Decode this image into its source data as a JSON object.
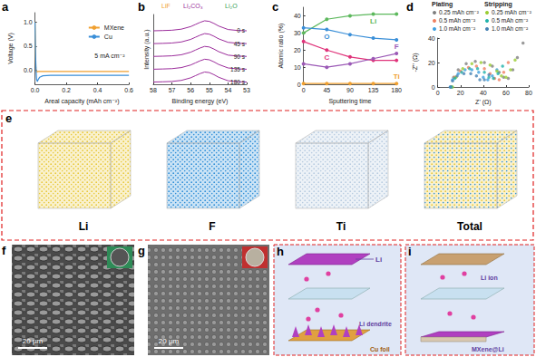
{
  "chart_data": [
    {
      "panel": "a",
      "type": "line",
      "xlabel": "Areal capacity (mAh cm⁻²)",
      "ylabel": "Voltage (V)",
      "xlim": [
        0,
        0.6
      ],
      "xticks": [
        {
          "value": 0,
          "label": "0.0"
        },
        0.2,
        0.4,
        0.6
      ],
      "ylim": [
        -0.3,
        1.2
      ],
      "yticks": [
        {
          "value": 0,
          "label": "0.0"
        },
        0.5,
        {
          "value": 1,
          "label": "1.0"
        }
      ],
      "grid": false,
      "legend": "upper right",
      "annotations": [
        "5 mA cm⁻²"
      ],
      "series": [
        {
          "name": "MXene",
          "color": "#f0a030",
          "x": [
            0,
            0.003,
            0.006,
            0.01,
            0.02,
            0.05,
            0.1,
            0.2,
            0.3,
            0.4,
            0.5,
            0.6
          ],
          "values": [
            1.0,
            0.3,
            0.0,
            -0.04,
            -0.03,
            -0.03,
            -0.03,
            -0.03,
            -0.03,
            -0.03,
            -0.03,
            -0.03
          ]
        },
        {
          "name": "Cu",
          "color": "#3a8fd8",
          "x": [
            0,
            0.003,
            0.006,
            0.01,
            0.015,
            0.02,
            0.03,
            0.05,
            0.1,
            0.2,
            0.3,
            0.4,
            0.5,
            0.6
          ],
          "values": [
            1.0,
            0.4,
            0.05,
            -0.2,
            -0.24,
            -0.2,
            -0.15,
            -0.12,
            -0.11,
            -0.11,
            -0.11,
            -0.11,
            -0.11,
            -0.11
          ]
        }
      ]
    },
    {
      "panel": "b",
      "type": "line",
      "xlabel": "Binding energy (eV)",
      "ylabel": "Intensity (a.u.)",
      "xlim": [
        58,
        53
      ],
      "xticks": [
        58,
        57,
        56,
        55,
        54,
        53
      ],
      "ylim": [
        0,
        6
      ],
      "tick_labels": "x",
      "grid": false,
      "annotations": [
        {
          "text": "LiF",
          "color": "#f0a030"
        },
        {
          "text": "Li₂CO₃",
          "color": "#9b2d9b"
        },
        {
          "text": "Li₂O",
          "color": "#3aa05a"
        }
      ],
      "series": [
        {
          "name": "0 s",
          "color": "#9b2d9b",
          "x": [
            58,
            57.5,
            57,
            56.5,
            56,
            55.75,
            55.5,
            55.25,
            55,
            54.75,
            54.5,
            54,
            53.5,
            53
          ],
          "values": [
            4.6,
            4.62,
            4.65,
            4.74,
            4.96,
            5.14,
            5.32,
            5.46,
            5.41,
            5.23,
            5.01,
            4.71,
            4.63,
            4.6
          ]
        },
        {
          "name": "45 s",
          "color": "#9b2d9b",
          "x": [
            58,
            57.5,
            57,
            56.5,
            56,
            55.75,
            55.5,
            55.25,
            55,
            54.75,
            54.5,
            54,
            53.5,
            53
          ],
          "values": [
            3.5,
            3.52,
            3.55,
            3.64,
            3.86,
            4.04,
            4.22,
            4.36,
            4.31,
            4.13,
            3.91,
            3.61,
            3.53,
            3.5
          ]
        },
        {
          "name": "90 s",
          "color": "#9b2d9b",
          "x": [
            58,
            57.5,
            57,
            56.5,
            56,
            55.75,
            55.5,
            55.25,
            55,
            54.75,
            54.5,
            54,
            53.5,
            53
          ],
          "values": [
            2.4,
            2.42,
            2.45,
            2.54,
            2.76,
            2.94,
            3.12,
            3.26,
            3.21,
            3.03,
            2.81,
            2.51,
            2.43,
            2.4
          ]
        },
        {
          "name": "135 s",
          "color": "#9b2d9b",
          "x": [
            58,
            57.5,
            57,
            56.5,
            56,
            55.75,
            55.5,
            55.25,
            55,
            54.75,
            54.5,
            54,
            53.5,
            53
          ],
          "values": [
            1.3,
            1.32,
            1.35,
            1.44,
            1.66,
            1.84,
            2.02,
            2.16,
            2.11,
            1.93,
            1.71,
            1.41,
            1.33,
            1.3
          ]
        },
        {
          "name": "180 s",
          "color": "#9b2d9b",
          "x": [
            58,
            57.5,
            57,
            56.5,
            56,
            55.75,
            55.5,
            55.25,
            55,
            54.75,
            54.5,
            54,
            53.5,
            53
          ],
          "values": [
            0.2,
            0.22,
            0.25,
            0.34,
            0.56,
            0.74,
            0.92,
            1.06,
            1.01,
            0.83,
            0.61,
            0.31,
            0.23,
            0.2
          ]
        }
      ]
    },
    {
      "panel": "c",
      "type": "line",
      "xlabel": "Sputtering time",
      "ylabel": "Atomic ratio (%)",
      "xlim": [
        0,
        180
      ],
      "xticks": [
        0,
        45,
        90,
        135,
        180
      ],
      "ylim": [
        0,
        45
      ],
      "yticks": [
        0,
        10,
        20,
        30,
        40
      ],
      "grid": false,
      "marker": "circle",
      "series": [
        {
          "name": "Li",
          "color": "#5cb85c",
          "x": [
            0,
            45,
            90,
            135,
            180
          ],
          "values": [
            30,
            38,
            40,
            41,
            41
          ]
        },
        {
          "name": "O",
          "color": "#3a8fd8",
          "x": [
            0,
            45,
            90,
            135,
            180
          ],
          "values": [
            33,
            32,
            29,
            27,
            26
          ]
        },
        {
          "name": "C",
          "color": "#e0337a",
          "x": [
            0,
            45,
            90,
            135,
            180
          ],
          "values": [
            25,
            20,
            16,
            14,
            14
          ]
        },
        {
          "name": "F",
          "color": "#9b59b6",
          "x": [
            0,
            45,
            90,
            135,
            180
          ],
          "values": [
            12,
            10,
            12,
            15,
            18
          ]
        },
        {
          "name": "Ti",
          "color": "#f0a030",
          "x": [
            0,
            45,
            90,
            135,
            180
          ],
          "values": [
            0.5,
            0.5,
            0.5,
            0.5,
            0.5
          ]
        }
      ]
    },
    {
      "panel": "d",
      "type": "scatter",
      "xlabel": "Z' (Ω)",
      "ylabel": "-Z'' (Ω)",
      "xlim": [
        0,
        80
      ],
      "xticks": [
        0,
        20,
        40,
        60,
        80
      ],
      "ylim": [
        0,
        40
      ],
      "yticks": [
        0,
        20,
        40
      ],
      "grid": false,
      "marker": "circle",
      "annotations": [
        "Plating",
        "Stripping"
      ],
      "series": [
        {
          "name": "0.25 mAh cm⁻²",
          "color": "#7f7f7f",
          "x": [
            12,
            14,
            18,
            25,
            33,
            41,
            48,
            54,
            58,
            62,
            66,
            70,
            75
          ],
          "values": [
            0,
            8,
            14,
            19,
            21,
            20,
            17,
            12,
            8,
            7,
            14,
            24,
            36
          ]
        },
        {
          "name": "0.5 mAh cm⁻²",
          "color": "#f08060",
          "x": [
            12,
            15,
            20,
            27,
            34,
            41,
            46,
            50,
            54,
            58,
            62
          ],
          "values": [
            0,
            8,
            13,
            16,
            17,
            15,
            11,
            7,
            6,
            12,
            20
          ]
        },
        {
          "name": "1.0 mAh cm⁻²",
          "color": "#3fa0e0",
          "x": [
            11,
            13,
            18,
            24,
            30,
            36,
            40,
            44,
            48,
            52
          ],
          "values": [
            0,
            6,
            11,
            14,
            14,
            12,
            8,
            6,
            9,
            14
          ]
        },
        {
          "name": "0.25 mAh cm⁻²",
          "color": "#9acd32",
          "x": [
            13,
            16,
            22,
            30,
            38,
            46,
            52,
            56,
            60,
            64,
            68
          ],
          "values": [
            0,
            8,
            15,
            19,
            20,
            18,
            13,
            9,
            8,
            14,
            22
          ]
        },
        {
          "name": "0.5 mAh cm⁻²",
          "color": "#20b2aa",
          "x": [
            12,
            15,
            21,
            28,
            35,
            41,
            45,
            49,
            53,
            57
          ],
          "values": [
            0,
            7,
            12,
            15,
            15,
            12,
            8,
            7,
            11,
            17
          ]
        },
        {
          "name": "1.0 mAh cm⁻²",
          "color": "#4682b4",
          "x": [
            11,
            13,
            17,
            23,
            29,
            34,
            37,
            41,
            45
          ],
          "values": [
            0,
            5,
            9,
            11,
            11,
            9,
            6,
            6,
            10
          ]
        }
      ]
    }
  ],
  "panel_e": {
    "label": "e",
    "cubes": [
      {
        "label": "Li",
        "colors": [
          "#e8c93a"
        ]
      },
      {
        "label": "F",
        "colors": [
          "#2f8fd8"
        ]
      },
      {
        "label": "Ti",
        "colors": [
          "#b8cce0"
        ]
      },
      {
        "label": "Total",
        "colors": [
          "#e8c93a",
          "#2f8fd8"
        ]
      }
    ]
  },
  "panel_f": {
    "label": "f",
    "scale_bar": "20 µm"
  },
  "panel_g": {
    "label": "g",
    "scale_bar": "20 µm"
  },
  "panel_h": {
    "label": "h",
    "texts": [
      "Li",
      "Li dendrite",
      "Cu foil"
    ]
  },
  "panel_i": {
    "label": "i",
    "texts": [
      "Li ion",
      "MXene@Li"
    ]
  }
}
